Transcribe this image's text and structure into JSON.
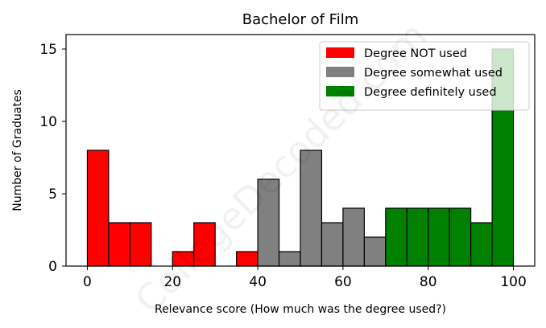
{
  "chart_data": {
    "type": "bar",
    "title": "Bachelor of Film",
    "xlabel": "Relevance score (How much was the degree used?)",
    "ylabel": "Number of Graduates",
    "xlim": [
      -5,
      105
    ],
    "ylim": [
      0,
      16
    ],
    "xticks": [
      0,
      20,
      40,
      60,
      80,
      100
    ],
    "yticks": [
      0,
      5,
      10,
      15
    ],
    "bin_width": 5,
    "grid": false,
    "legend_position": "top-right",
    "series": [
      {
        "name": "Degree NOT used",
        "color": "#ff0000",
        "bins": [
          {
            "x": 0,
            "value": 8
          },
          {
            "x": 5,
            "value": 3
          },
          {
            "x": 10,
            "value": 3
          },
          {
            "x": 20,
            "value": 1
          },
          {
            "x": 25,
            "value": 3
          },
          {
            "x": 35,
            "value": 1
          }
        ]
      },
      {
        "name": "Degree somewhat used",
        "color": "#808080",
        "bins": [
          {
            "x": 40,
            "value": 6
          },
          {
            "x": 45,
            "value": 1
          },
          {
            "x": 50,
            "value": 8
          },
          {
            "x": 55,
            "value": 3
          },
          {
            "x": 60,
            "value": 4
          },
          {
            "x": 65,
            "value": 2
          }
        ]
      },
      {
        "name": "Degree definitely used",
        "color": "#008000",
        "bins": [
          {
            "x": 70,
            "value": 4
          },
          {
            "x": 75,
            "value": 4
          },
          {
            "x": 80,
            "value": 4
          },
          {
            "x": 85,
            "value": 4
          },
          {
            "x": 90,
            "value": 3
          },
          {
            "x": 95,
            "value": 15
          }
        ]
      }
    ]
  },
  "watermark": "CollegeDecoded.com"
}
